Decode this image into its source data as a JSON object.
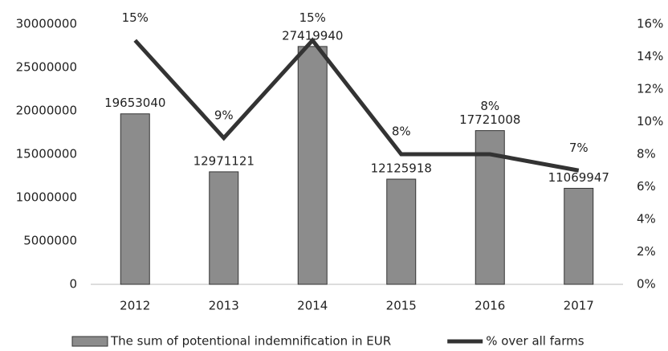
{
  "chart_data": {
    "type": "bar",
    "categories": [
      "2012",
      "2013",
      "2014",
      "2015",
      "2016",
      "2017"
    ],
    "series": [
      {
        "name": "The sum of potentional indemnification in EUR",
        "type": "bar",
        "color": "#8c8c8c",
        "values": [
          19653040,
          12971121,
          27419940,
          12125918,
          17721008,
          11069947
        ]
      },
      {
        "name": "% over all farms",
        "type": "line",
        "axis": "y2",
        "color": "#333333",
        "values": [
          15,
          9,
          15,
          8,
          8,
          7
        ],
        "value_labels": [
          "15%",
          "9%",
          "15%",
          "8%",
          "8%",
          "7%"
        ]
      }
    ],
    "ylim": [
      0,
      30000000
    ],
    "yticks": [
      0,
      5000000,
      10000000,
      15000000,
      20000000,
      25000000,
      30000000
    ],
    "y2lim": [
      0,
      16
    ],
    "y2ticks": [
      {
        "value": 0,
        "label": "0%"
      },
      {
        "value": 2,
        "label": "2%"
      },
      {
        "value": 4,
        "label": "4%"
      },
      {
        "value": 6,
        "label": "6%"
      },
      {
        "value": 8,
        "label": "8%"
      },
      {
        "value": 10,
        "label": "10%"
      },
      {
        "value": 12,
        "label": "12%"
      },
      {
        "value": 14,
        "label": "14%"
      },
      {
        "value": 16,
        "label": "16%"
      }
    ],
    "grid": false,
    "legend": "bottom"
  }
}
